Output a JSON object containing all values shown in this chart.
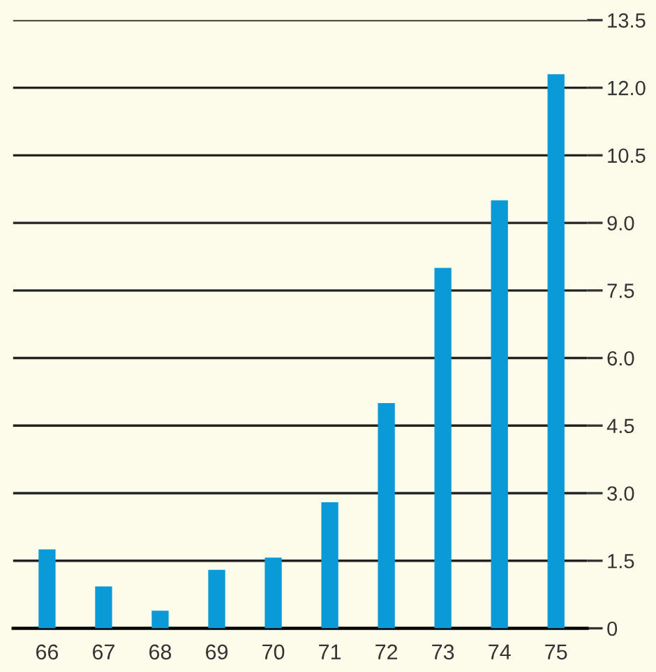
{
  "chart_data": {
    "type": "bar",
    "categories": [
      "66",
      "67",
      "68",
      "69",
      "70",
      "71",
      "72",
      "73",
      "74",
      "75"
    ],
    "values": [
      1.75,
      0.93,
      0.39,
      1.3,
      1.57,
      2.8,
      5.0,
      8.0,
      9.5,
      12.3
    ],
    "color": "#0b9ad8",
    "ylim": [
      0,
      13.5
    ],
    "yticks": [
      {
        "value": 0,
        "label": "0"
      },
      1.5,
      {
        "value": 3,
        "label": "3.0"
      },
      4.5,
      {
        "value": 6,
        "label": "6.0"
      },
      7.5,
      {
        "value": 9,
        "label": "9.0"
      },
      10.5,
      {
        "value": 12,
        "label": "12.0"
      },
      13.5
    ],
    "grid": "y"
  }
}
